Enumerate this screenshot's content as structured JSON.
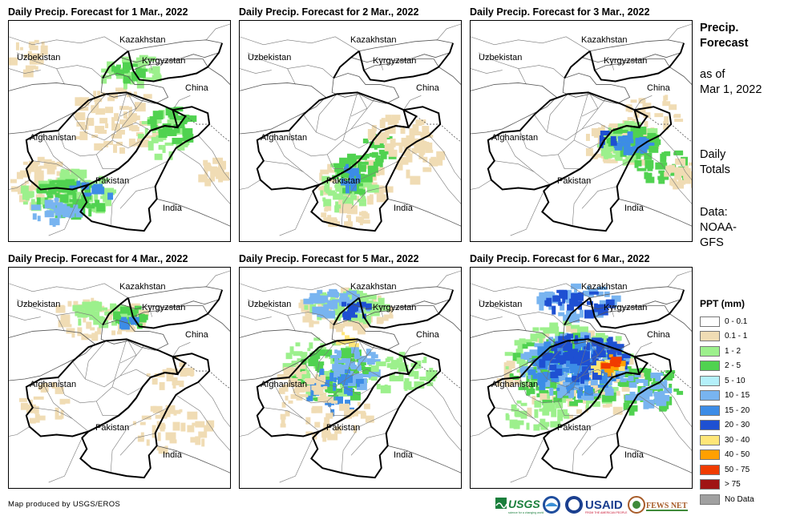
{
  "panels": [
    {
      "title": "Daily Precip. Forecast for 1 Mar., 2022",
      "intensity": "mod-west"
    },
    {
      "title": "Daily Precip. Forecast for 2 Mar., 2022",
      "intensity": "light-pak"
    },
    {
      "title": "Daily Precip. Forecast for 3 Mar., 2022",
      "intensity": "light-east"
    },
    {
      "title": "Daily Precip. Forecast for 4 Mar., 2022",
      "intensity": "light-north"
    },
    {
      "title": "Daily Precip. Forecast for 5 Mar., 2022",
      "intensity": "mod-north"
    },
    {
      "title": "Daily Precip. Forecast for 6 Mar., 2022",
      "intensity": "heavy"
    }
  ],
  "map_labels": {
    "kazakhstan": "Kazakhstan",
    "uzbekistan": "Uzbekistan",
    "kyrgyzstan": "Kyrgyzstan",
    "china": "China",
    "afghanistan": "Afghanistan",
    "pakistan": "Pakistan",
    "india": "India"
  },
  "side": {
    "heading_line1": "Precip.",
    "heading_line2": "Forecast",
    "asof_line1": "as of",
    "asof_line2": "Mar 1, 2022",
    "daily_line1": "Daily",
    "daily_line2": "Totals",
    "data_line1": "Data:",
    "data_line2": "NOAA-",
    "data_line3": "GFS"
  },
  "legend": {
    "title": "PPT (mm)",
    "items": [
      {
        "label": "0 - 0.1",
        "color": "#ffffff"
      },
      {
        "label": "0.1 - 1",
        "color": "#f0dcb4"
      },
      {
        "label": "1 - 2",
        "color": "#9cf08c"
      },
      {
        "label": "2 - 5",
        "color": "#50d250"
      },
      {
        "label": "5 - 10",
        "color": "#b4f0fa"
      },
      {
        "label": "10 - 15",
        "color": "#78b4f0"
      },
      {
        "label": "15 - 20",
        "color": "#3c8ce6"
      },
      {
        "label": "20 - 30",
        "color": "#1e50d2"
      },
      {
        "label": "30 - 40",
        "color": "#ffe678"
      },
      {
        "label": "40 - 50",
        "color": "#ffa000"
      },
      {
        "label": "50 - 75",
        "color": "#f03c00"
      },
      {
        "label": "> 75",
        "color": "#a01414"
      },
      {
        "label": "No Data",
        "color": "#a0a0a0"
      }
    ]
  },
  "credit": "Map produced by USGS/EROS",
  "logos": {
    "usgs": "USGS",
    "usgs_tag": "science for a changing world",
    "usaid": "USAID",
    "usaid_tag": "FROM THE AMERICAN PEOPLE",
    "fewsnet": "FEWS NET"
  }
}
